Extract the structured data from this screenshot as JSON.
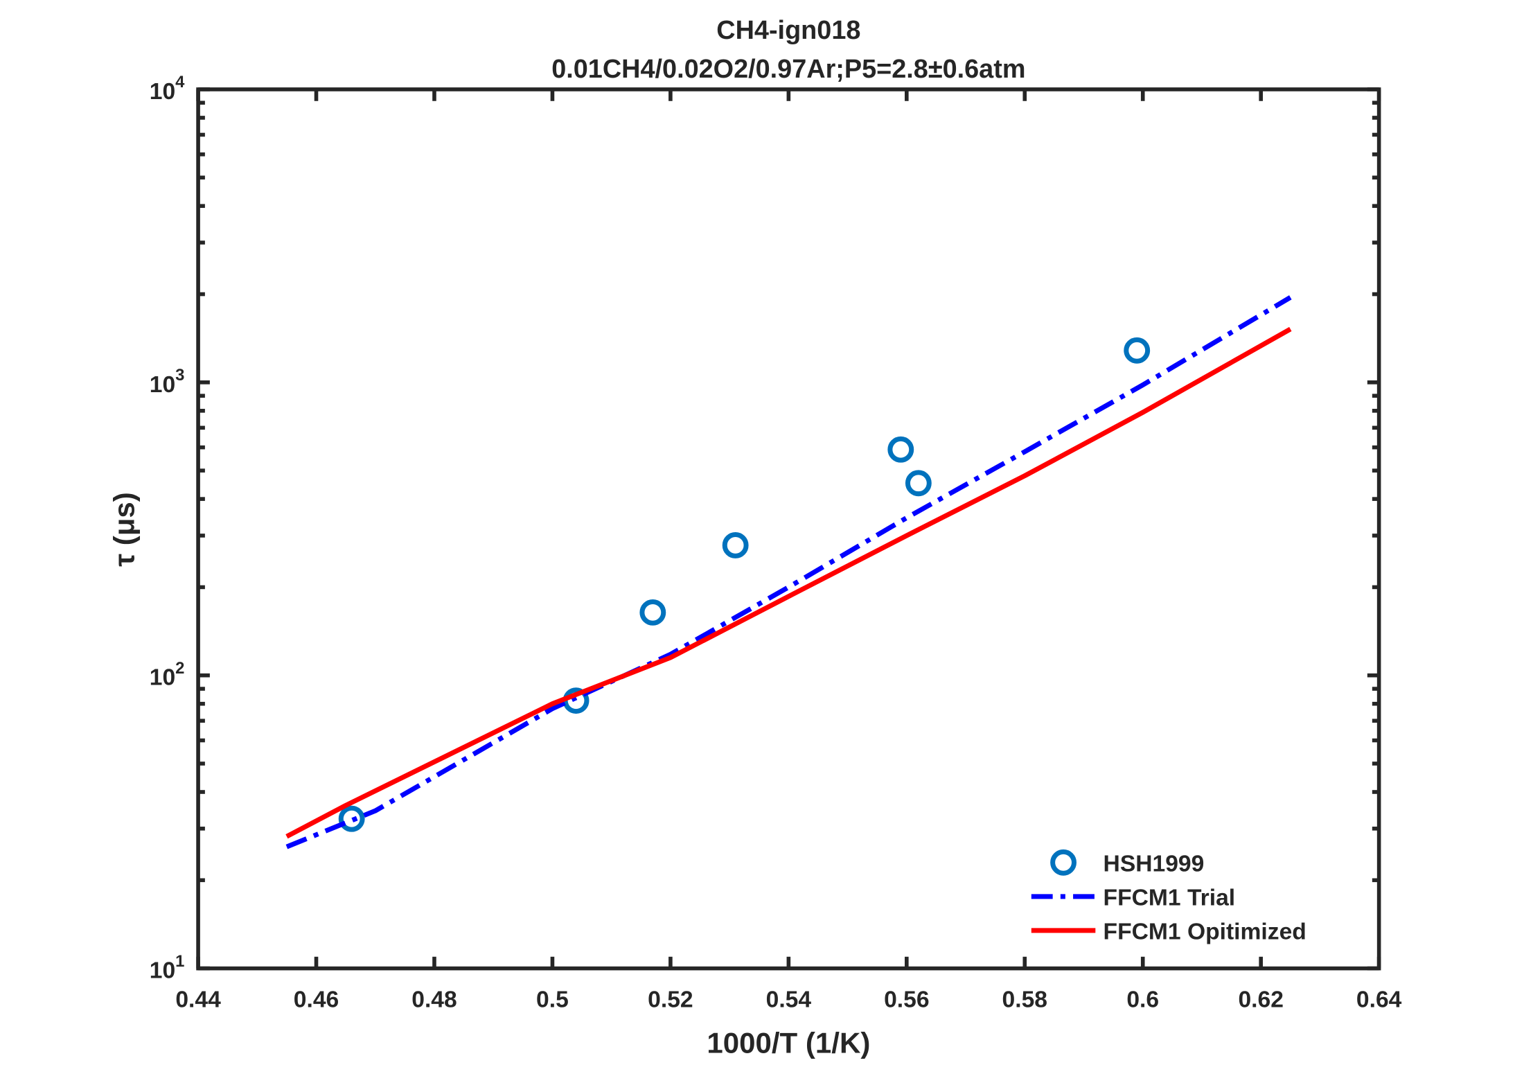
{
  "chart_data": {
    "type": "line",
    "title": "CH4-ign018",
    "subtitle": "0.01CH4/0.02O2/0.97Ar;P5=2.8±0.6atm",
    "xlabel": "1000/T (1/K)",
    "ylabel": "τ (μs)",
    "xlim": [
      0.44,
      0.64
    ],
    "ylim": [
      10,
      10000
    ],
    "yscale": "log",
    "grid": false,
    "legend_position": "bottom-right",
    "x_ticks": [
      "0.44",
      "0.46",
      "0.48",
      "0.5",
      "0.52",
      "0.54",
      "0.56",
      "0.58",
      "0.6",
      "0.62",
      "0.64"
    ],
    "y_ticks": [
      {
        "base": "10",
        "exp": "1"
      },
      {
        "base": "10",
        "exp": "2"
      },
      {
        "base": "10",
        "exp": "3"
      },
      {
        "base": "10",
        "exp": "4"
      }
    ],
    "series": [
      {
        "name": "HSH1999",
        "style": "markers",
        "color": "#0072BD",
        "x": [
          0.466,
          0.504,
          0.517,
          0.531,
          0.559,
          0.562,
          0.599
        ],
        "y": [
          32.4,
          82,
          164,
          278,
          590,
          453,
          1285
        ]
      },
      {
        "name": "FFCM1 Trial",
        "style": "dashdot",
        "color": "#0000FF",
        "x": [
          0.455,
          0.47,
          0.5,
          0.52,
          0.54,
          0.56,
          0.58,
          0.6,
          0.625
        ],
        "y": [
          26,
          34.5,
          77,
          118,
          200,
          345,
          580,
          980,
          1950
        ]
      },
      {
        "name": "FFCM1 Opitimized",
        "style": "solid",
        "color": "#FF0000",
        "x": [
          0.455,
          0.465,
          0.5,
          0.52,
          0.54,
          0.56,
          0.58,
          0.6,
          0.625
        ],
        "y": [
          28.2,
          36,
          80,
          115,
          186,
          300,
          480,
          790,
          1520
        ]
      }
    ]
  }
}
